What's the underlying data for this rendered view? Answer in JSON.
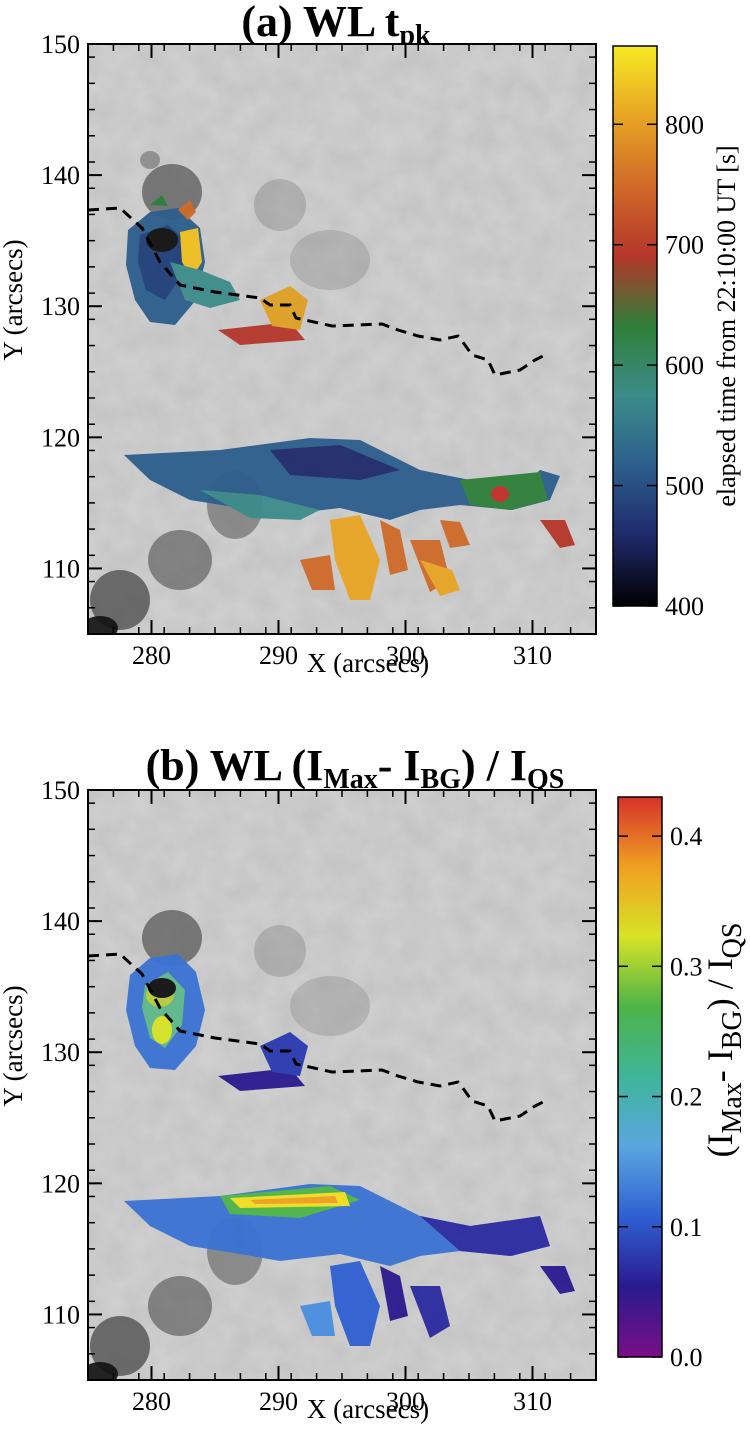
{
  "figure": {
    "panels": [
      {
        "title_main": "(a) WL t",
        "title_sub": "pk",
        "ylabel": "Y (arcsecs)",
        "xlabel": "X (arcsecs)",
        "colorbar": {
          "label": "elapsed time from 22:10:00 UT [s]",
          "ticks": [
            "400",
            "500",
            "600",
            "700",
            "800"
          ],
          "range": [
            400,
            865
          ],
          "colors": [
            "#000000",
            "#1f2a6b",
            "#2c5e8c",
            "#3c8c8a",
            "#2f7f3a",
            "#b5362a",
            "#cf6a28",
            "#e8a524",
            "#f5ea22"
          ]
        }
      },
      {
        "title_main": "(b) WL (I",
        "title_sub1": "Max",
        "title_mid": "- I",
        "title_sub2": "BG",
        "title_end": ") / I",
        "title_sub3": "QS",
        "ylabel": "Y (arcsecs)",
        "xlabel": "X (arcsecs)",
        "colorbar": {
          "label_a": "(I",
          "label_sub1": "Max",
          "label_b": "- I",
          "label_sub2": "BG",
          "label_c": ") / I",
          "label_sub3": "QS",
          "ticks": [
            "0.0",
            "0.1",
            "0.2",
            "0.3",
            "0.4"
          ],
          "range": [
            0.0,
            0.43
          ],
          "colors": [
            "#7a0f86",
            "#2a1a8f",
            "#2f5fd1",
            "#5aa6e0",
            "#3fb59a",
            "#4cb447",
            "#d7e326",
            "#f0a021",
            "#d5322a"
          ]
        }
      }
    ],
    "axes": {
      "xticks": [
        "280",
        "290",
        "300",
        "310"
      ],
      "yticks": [
        "110",
        "120",
        "130",
        "140",
        "150"
      ],
      "xlim": [
        275,
        315
      ],
      "ylim": [
        105,
        150
      ]
    }
  }
}
